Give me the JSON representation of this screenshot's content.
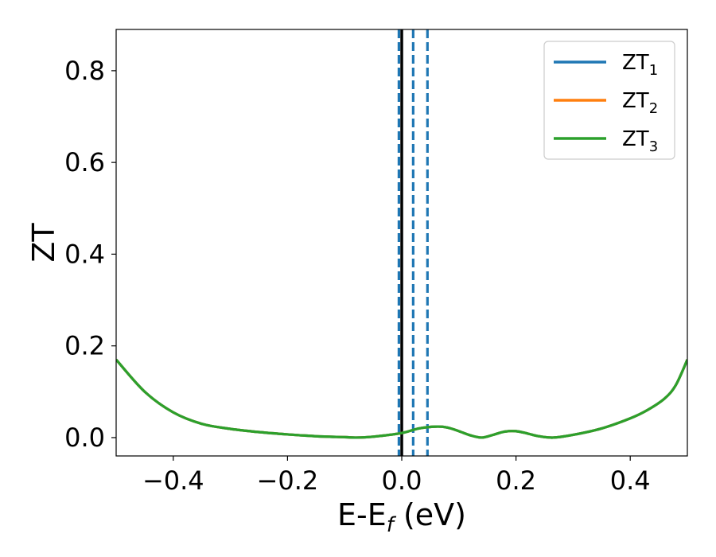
{
  "chart_data": {
    "type": "line",
    "title": "",
    "xlabel": {
      "main": "E-E",
      "sub": "f",
      "unit": " (eV)"
    },
    "ylabel": "ZT",
    "xlim": [
      -0.5,
      0.5
    ],
    "ylim": [
      -0.04,
      0.89
    ],
    "grid": false,
    "legend_position": "top-right",
    "x_ticks": [
      {
        "value": -0.4,
        "label": "−0.4"
      },
      {
        "value": -0.2,
        "label": "−0.2"
      },
      {
        "value": 0.0,
        "label": "0.0"
      },
      {
        "value": 0.2,
        "label": "0.2"
      },
      {
        "value": 0.4,
        "label": "0.4"
      }
    ],
    "y_ticks": [
      {
        "value": 0.0,
        "label": "0.0"
      },
      {
        "value": 0.2,
        "label": "0.2"
      },
      {
        "value": 0.4,
        "label": "0.4"
      },
      {
        "value": 0.6,
        "label": "0.6"
      },
      {
        "value": 0.8,
        "label": "0.8"
      }
    ],
    "series": [
      {
        "name": "ZT",
        "sub": "1",
        "color": "#1f77b4",
        "x": [
          -0.5,
          -0.45,
          -0.4,
          -0.35,
          -0.3,
          -0.25,
          -0.2,
          -0.15,
          -0.1,
          -0.08,
          -0.05,
          0.0,
          0.03,
          0.06,
          0.08,
          0.1,
          0.12,
          0.14,
          0.16,
          0.18,
          0.2,
          0.22,
          0.24,
          0.265,
          0.3,
          0.35,
          0.4,
          0.43,
          0.46,
          0.48,
          0.5
        ],
        "y": [
          0.17,
          0.1,
          0.055,
          0.03,
          0.019,
          0.012,
          0.007,
          0.003,
          0.001,
          0.0,
          0.002,
          0.01,
          0.02,
          0.024,
          0.022,
          0.014,
          0.005,
          0.0,
          0.006,
          0.013,
          0.014,
          0.009,
          0.003,
          0.0,
          0.006,
          0.02,
          0.042,
          0.06,
          0.085,
          0.115,
          0.17
        ]
      },
      {
        "name": "ZT",
        "sub": "2",
        "color": "#ff7f0e",
        "x": [
          -0.5,
          -0.45,
          -0.4,
          -0.35,
          -0.3,
          -0.25,
          -0.2,
          -0.15,
          -0.1,
          -0.08,
          -0.05,
          0.0,
          0.03,
          0.06,
          0.08,
          0.1,
          0.12,
          0.14,
          0.16,
          0.18,
          0.2,
          0.22,
          0.24,
          0.265,
          0.3,
          0.35,
          0.4,
          0.43,
          0.46,
          0.48,
          0.5
        ],
        "y": [
          0.17,
          0.1,
          0.055,
          0.03,
          0.019,
          0.012,
          0.007,
          0.003,
          0.001,
          0.0,
          0.002,
          0.01,
          0.02,
          0.024,
          0.022,
          0.014,
          0.005,
          0.0,
          0.006,
          0.013,
          0.014,
          0.009,
          0.003,
          0.0,
          0.006,
          0.02,
          0.042,
          0.06,
          0.085,
          0.115,
          0.17
        ]
      },
      {
        "name": "ZT",
        "sub": "3",
        "color": "#2ca02c",
        "x": [
          -0.5,
          -0.45,
          -0.4,
          -0.35,
          -0.3,
          -0.25,
          -0.2,
          -0.15,
          -0.1,
          -0.08,
          -0.05,
          0.0,
          0.03,
          0.06,
          0.08,
          0.1,
          0.12,
          0.14,
          0.16,
          0.18,
          0.2,
          0.22,
          0.24,
          0.265,
          0.3,
          0.35,
          0.4,
          0.43,
          0.46,
          0.48,
          0.5
        ],
        "y": [
          0.17,
          0.1,
          0.055,
          0.03,
          0.019,
          0.012,
          0.007,
          0.003,
          0.001,
          0.0,
          0.002,
          0.01,
          0.02,
          0.024,
          0.022,
          0.014,
          0.005,
          0.0,
          0.006,
          0.013,
          0.014,
          0.009,
          0.003,
          0.0,
          0.006,
          0.02,
          0.042,
          0.06,
          0.085,
          0.115,
          0.17
        ]
      }
    ],
    "vertical_lines": [
      {
        "x": -0.005,
        "color": "#1f77b4",
        "style": "dashed"
      },
      {
        "x": 0.0,
        "color": "#000000",
        "style": "solid"
      },
      {
        "x": 0.02,
        "color": "#1f77b4",
        "style": "dashed"
      },
      {
        "x": 0.045,
        "color": "#1f77b4",
        "style": "dashed"
      }
    ]
  }
}
